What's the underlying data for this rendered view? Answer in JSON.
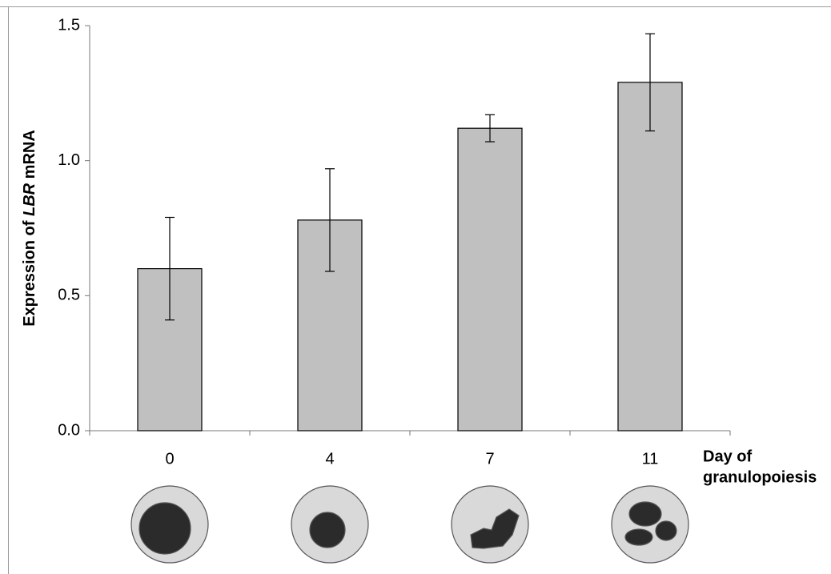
{
  "chart_data": {
    "type": "bar",
    "y_label": [
      "Expression of ",
      "LBR",
      " mRNA"
    ],
    "x_label": [
      "Day of",
      "granulopoiesis"
    ],
    "categories": [
      "0",
      "4",
      "7",
      "11"
    ],
    "values": [
      0.6,
      0.78,
      1.12,
      1.29
    ],
    "errors": [
      0.19,
      0.19,
      0.05,
      0.18
    ],
    "color": "#c0c0c0",
    "ylim": [
      0,
      1.5
    ],
    "yticks": [
      {
        "value": 0,
        "label": "0.0"
      },
      {
        "value": 0.5,
        "label": "0.5"
      },
      {
        "value": 1,
        "label": "1.0"
      },
      {
        "value": 1.5,
        "label": "1.5"
      }
    ]
  }
}
